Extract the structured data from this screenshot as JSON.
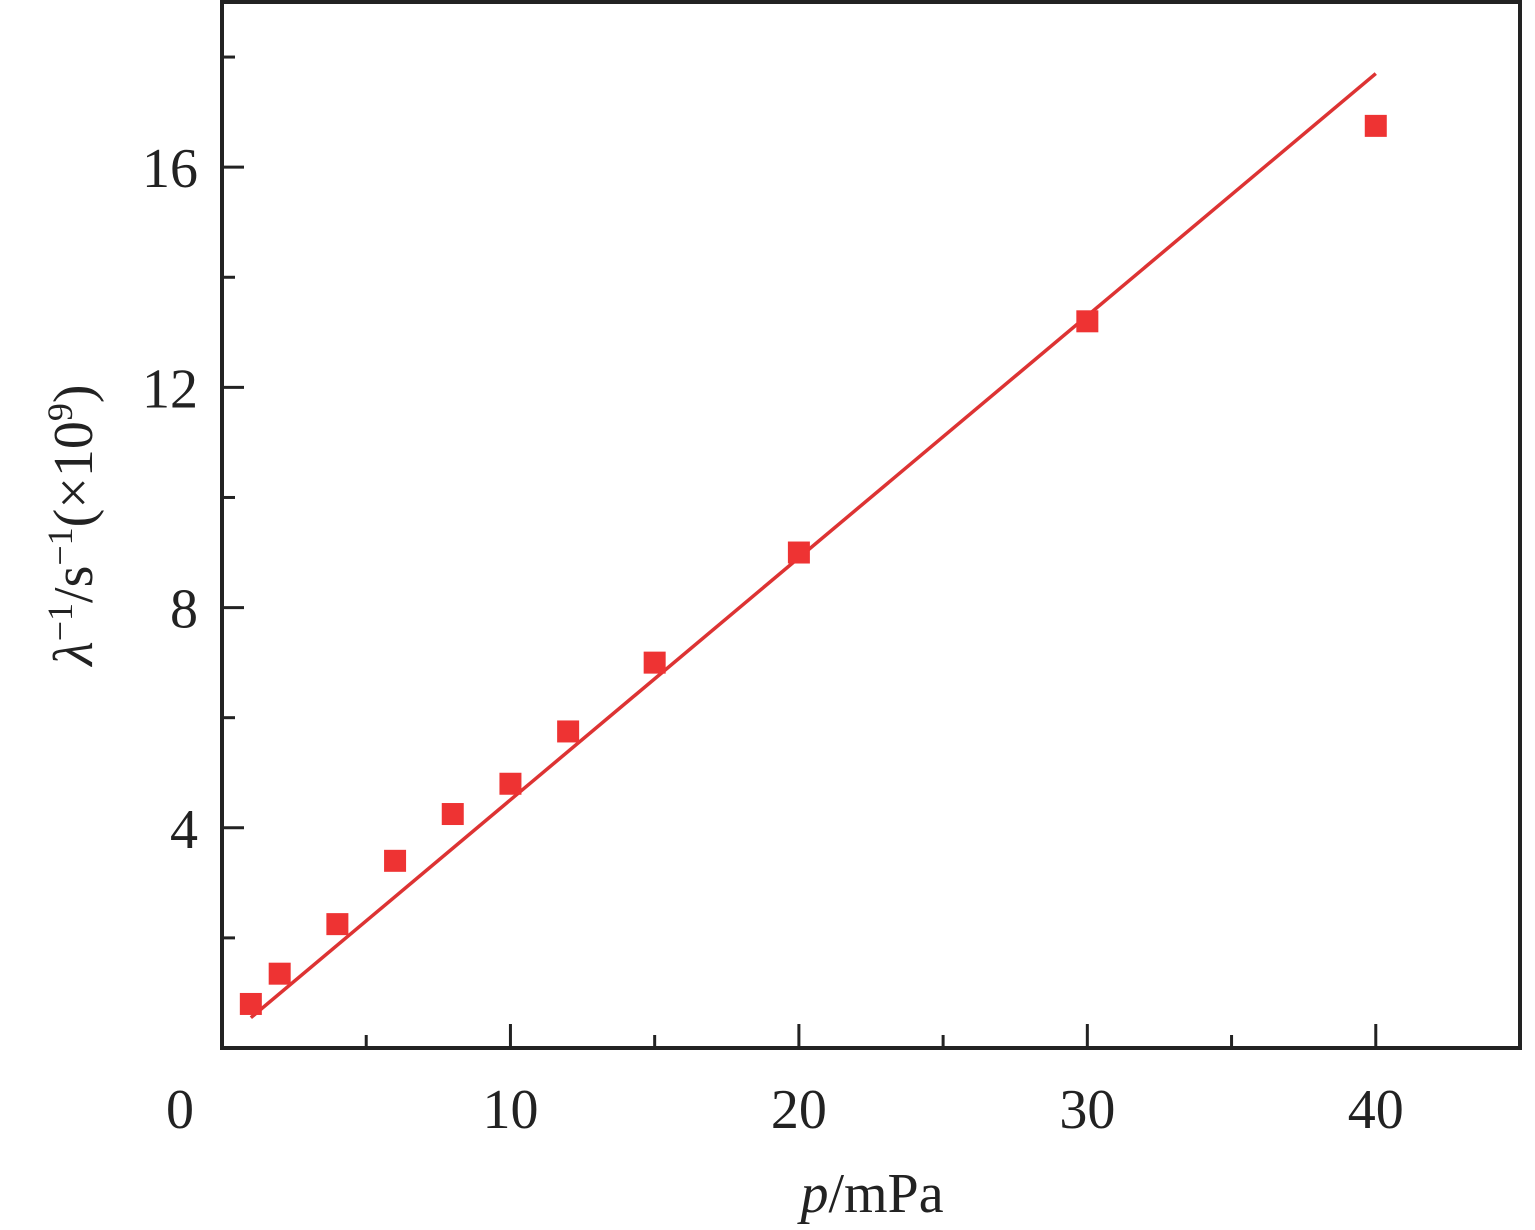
{
  "chart_data": {
    "type": "scatter",
    "title": "",
    "xlabel": {
      "symbol": "p",
      "unit": "/mPa"
    },
    "ylabel": {
      "symbol": "λ",
      "sup1": "−1",
      "mid": "/s",
      "sup2": "−1",
      "rest": "(×10",
      "sup3": "9",
      "close": ")"
    },
    "xlim": [
      0,
      45
    ],
    "ylim": [
      0,
      19
    ],
    "x_ticks": [
      0,
      10,
      20,
      30,
      40
    ],
    "x_tick_labels": [
      "0",
      "10",
      "20",
      "30",
      "40"
    ],
    "x_minor_ticks": [
      5,
      15,
      25,
      35
    ],
    "y_ticks": [
      4,
      8,
      12,
      16
    ],
    "y_tick_labels": [
      "4",
      "8",
      "12",
      "16"
    ],
    "y_minor_ticks": [
      2,
      6,
      10,
      14,
      18
    ],
    "grid": false,
    "legend": "none",
    "series": [
      {
        "marker": "square",
        "color": "#ee3333",
        "x": [
          1,
          2,
          4,
          6,
          8,
          10,
          12,
          15,
          20,
          30,
          40
        ],
        "y": [
          0.8,
          1.35,
          2.25,
          3.4,
          4.25,
          4.8,
          5.75,
          7.0,
          9.0,
          13.2,
          16.75
        ]
      }
    ],
    "fit_line": {
      "color": "#dd3333",
      "x": [
        1,
        40
      ],
      "y": [
        0.55,
        17.7
      ]
    }
  }
}
